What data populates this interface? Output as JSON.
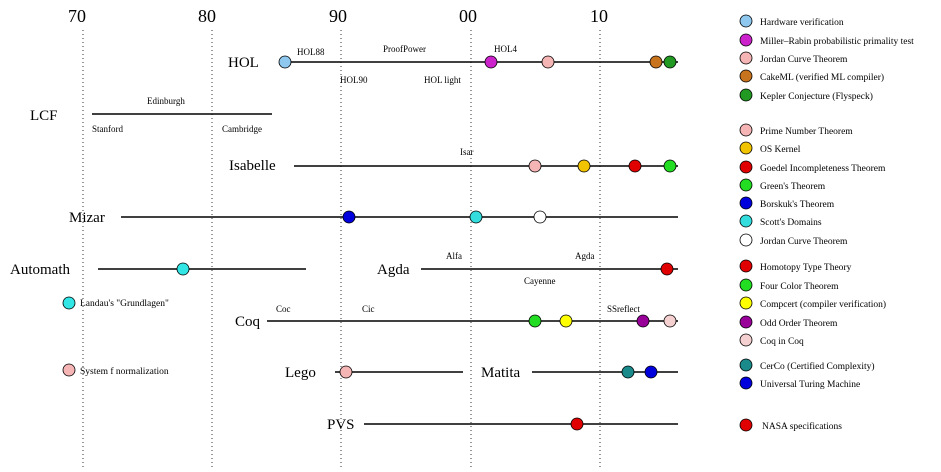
{
  "axis": {
    "ticks": [
      "70",
      "80",
      "90",
      "00",
      "10"
    ]
  },
  "systems": [
    {
      "name": "HOL",
      "labels": [
        "HOL88",
        "ProofPower",
        "HOL4",
        "HOL90",
        "HOL light"
      ]
    },
    {
      "name": "LCF",
      "labels": [
        "Edinburgh",
        "Stanford",
        "Cambridge"
      ]
    },
    {
      "name": "Isabelle",
      "labels": [
        "Isar"
      ]
    },
    {
      "name": "Mizar",
      "labels": []
    },
    {
      "name": "Automath",
      "labels": []
    },
    {
      "name": "Agda",
      "labels": [
        "Alfa",
        "Agda",
        "Cayenne"
      ]
    },
    {
      "name": "Coq",
      "labels": [
        "Coc",
        "Cic",
        "SSreflect"
      ]
    },
    {
      "name": "Lego",
      "labels": []
    },
    {
      "name": "Matita",
      "labels": []
    },
    {
      "name": "PVS",
      "labels": []
    }
  ],
  "side_notes": [
    {
      "label": "Landau's \"Grundlagen\"",
      "color": "#33e6e6"
    },
    {
      "label": "System f normalization",
      "color": "#f5b5b5"
    }
  ],
  "legend": [
    {
      "label": "Hardware verification",
      "color": "#8ec8ef"
    },
    {
      "label": "Miller–Rabin probabilistic primality test",
      "color": "#cc22cc"
    },
    {
      "label": "Jordan Curve Theorem",
      "color": "#f5b5b5"
    },
    {
      "label": "CakeML (verified ML compiler)",
      "color": "#c8741e"
    },
    {
      "label": "Kepler Conjecture (Flyspeck)",
      "color": "#229922"
    },
    {
      "label": "Prime Number Theorem",
      "color": "#f5b5b5"
    },
    {
      "label": "OS Kernel",
      "color": "#f2c400"
    },
    {
      "label": "Goedel Incompleteness Theorem",
      "color": "#e00000"
    },
    {
      "label": "Green's Theorem",
      "color": "#22dd22"
    },
    {
      "label": "Borskuk's Theorem",
      "color": "#0000dd"
    },
    {
      "label": "Scott's Domains",
      "color": "#33dddd"
    },
    {
      "label": "Jordan Curve Theorem",
      "color": "#ffffff"
    },
    {
      "label": "Homotopy Type Theory",
      "color": "#e00000"
    },
    {
      "label": "Four Color Theorem",
      "color": "#22dd22"
    },
    {
      "label": "Compcert (compiler verification)",
      "color": "#ffff00"
    },
    {
      "label": "Odd Order Theorem",
      "color": "#990099"
    },
    {
      "label": "Coq in Coq",
      "color": "#f5d0d0"
    },
    {
      "label": "CerCo (Certified Complexity)",
      "color": "#1a8a8a"
    },
    {
      "label": "Universal Turing Machine",
      "color": "#0000dd"
    },
    {
      "label": "NASA specifications",
      "color": "#e00000"
    }
  ]
}
